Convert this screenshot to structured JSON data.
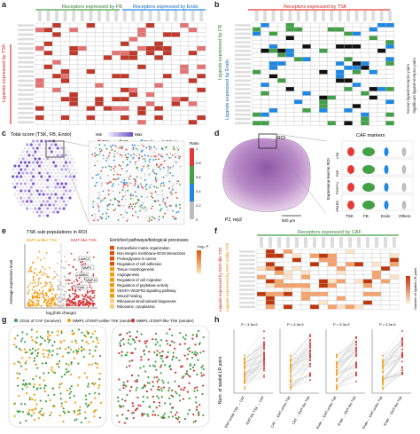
{
  "panels": {
    "a": {
      "label": "a",
      "title_left": "Receptors expressed by FB",
      "title_right": "Receptors expressed by Endo",
      "ylabel": "Ligands expressed by TSK"
    },
    "b": {
      "label": "b",
      "title": "Receptors expressed by TSK",
      "ylabel": "Ligands expressed by FB",
      "ylabel2": "Ligands expressed by Endo",
      "legend": [
        "Known ligand-receptor pairs",
        "Significant ligand-receptor pairs"
      ]
    },
    "c": {
      "label": "c",
      "title": "Total score (TSK, FB, Endo)",
      "scale_min": "Min",
      "scale_max": "Max",
      "legend": [
        "TSK",
        "FB",
        "Endo",
        "Others"
      ],
      "ratio_label": "Ratio",
      "ratio_ticks": [
        "1",
        "0.8",
        "0.6",
        "0.4",
        "0.2",
        "0"
      ]
    },
    "d": {
      "label": "d",
      "roi": "ROI",
      "sample": "P2, rep2",
      "scale": "500 μm",
      "markers_title": "CAF markers",
      "genes": [
        "VIM",
        "FAP",
        "POSTN",
        "SPARC"
      ],
      "ylabel": "Expression level in ROI",
      "groups": [
        "TSK",
        "FB",
        "Endo",
        "Others"
      ]
    },
    "e": {
      "label": "e",
      "title": "TSK sub-populations in ROI",
      "emt_unlike": "EMT-unlike TSK",
      "emt_like": "EMT-like TSK",
      "xlabel": "log₂(fold change)",
      "ylabel": "Average expression level",
      "genes": [
        "LAMC2",
        "MMP1",
        "LAMB3",
        "MMP10",
        "ITGA6"
      ],
      "pathways_title": "Enriched pathways/biological processes",
      "fdr_label": "-log₁₀ P",
      "pathways": [
        "Extracellular matrix organization",
        "Non-integrin membrane-ECM interactions",
        "Proteoglycans in cancer",
        "Regulation of cell adhesion",
        "Tissue morphogenesis",
        "Angiogenesis",
        "Regulation of cell migration",
        "Regulation of peptidase activity",
        "VEGFA-VEGFR2 signaling pathway",
        "Wound healing",
        "Ribosomal small subunit biogenesis",
        "Ribosome, cytoplasmic"
      ]
    },
    "f": {
      "label": "f",
      "title": "Receptors expressed by CAF",
      "ylabel": "Ligands expressed by EMT-like TSK",
      "ylabel2": "Ligands expressed by EMT-unlike TSK",
      "score_label": "Number of spatial LR pairs"
    },
    "g": {
      "label": "g",
      "legend": [
        "CD44 of CAF (receiver)",
        "MMP1 of EMT-unlike TSK (sender)",
        "MMP1 of EMT-like TSK (sender)"
      ]
    },
    "h": {
      "label": "h",
      "ylabel": "Num. of spatial LR pairs",
      "pvals": [
        "P = 3.3e-9",
        "P = 3.3e-9",
        "P = 3.3e-9",
        "P = 3.3e-9"
      ],
      "xlabels": [
        "EMT-unlike TSK → CAF",
        "EMT-like TSK → CAF",
        "CAF → EMT-unlike TSK",
        "CAF → EMT-like TSK",
        "Endo → EMT-unlike TSK",
        "Endo → EMT-like TSK",
        "Endo → EMT-unlike TSK",
        "Endo → EMT-like TSK"
      ]
    }
  },
  "colors": {
    "tsk": "#e53935",
    "fb": "#43a047",
    "endo": "#1e88e5",
    "others": "#bdbdbd",
    "orange": "#f39c12",
    "purple": "#7b5cc9"
  }
}
